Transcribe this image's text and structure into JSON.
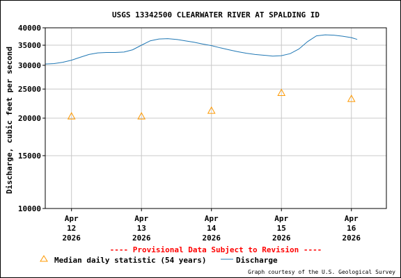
{
  "chart_data": {
    "type": "line",
    "title": "USGS 13342500 CLEARWATER RIVER AT SPALDING ID",
    "ylabel": "Discharge, cubic feet per second",
    "xlabel": "",
    "y_scale": "log",
    "ylim": [
      10000,
      40000
    ],
    "y_ticks": [
      10000,
      15000,
      20000,
      25000,
      30000,
      35000,
      40000
    ],
    "xlim": [
      "2026-04-11T15:00",
      "2026-04-16T12:00"
    ],
    "x_ticks": [
      {
        "date": "2026-04-12",
        "label": [
          "Apr",
          "12",
          "2026"
        ]
      },
      {
        "date": "2026-04-13",
        "label": [
          "Apr",
          "13",
          "2026"
        ]
      },
      {
        "date": "2026-04-14",
        "label": [
          "Apr",
          "14",
          "2026"
        ]
      },
      {
        "date": "2026-04-15",
        "label": [
          "Apr",
          "15",
          "2026"
        ]
      },
      {
        "date": "2026-04-16",
        "label": [
          "Apr",
          "16",
          "2026"
        ]
      }
    ],
    "grid": true,
    "series": [
      {
        "name": "Discharge",
        "kind": "line",
        "color": "#1f77b4",
        "points": [
          [
            "2026-04-11T15:00",
            30300
          ],
          [
            "2026-04-11T18:00",
            30400
          ],
          [
            "2026-04-11T21:00",
            30700
          ],
          [
            "2026-04-12T00:00",
            31200
          ],
          [
            "2026-04-12T03:00",
            31900
          ],
          [
            "2026-04-12T06:00",
            32600
          ],
          [
            "2026-04-12T09:00",
            33000
          ],
          [
            "2026-04-12T12:00",
            33100
          ],
          [
            "2026-04-12T15:00",
            33100
          ],
          [
            "2026-04-12T18:00",
            33200
          ],
          [
            "2026-04-12T21:00",
            33800
          ],
          [
            "2026-04-13T00:00",
            35000
          ],
          [
            "2026-04-13T03:00",
            36200
          ],
          [
            "2026-04-13T06:00",
            36700
          ],
          [
            "2026-04-13T09:00",
            36800
          ],
          [
            "2026-04-13T12:00",
            36600
          ],
          [
            "2026-04-13T15:00",
            36200
          ],
          [
            "2026-04-13T18:00",
            35800
          ],
          [
            "2026-04-13T21:00",
            35300
          ],
          [
            "2026-04-14T00:00",
            34900
          ],
          [
            "2026-04-14T03:00",
            34300
          ],
          [
            "2026-04-14T06:00",
            33800
          ],
          [
            "2026-04-14T09:00",
            33300
          ],
          [
            "2026-04-14T12:00",
            32900
          ],
          [
            "2026-04-14T15:00",
            32600
          ],
          [
            "2026-04-14T18:00",
            32400
          ],
          [
            "2026-04-14T21:00",
            32200
          ],
          [
            "2026-04-15T00:00",
            32300
          ],
          [
            "2026-04-15T03:00",
            32800
          ],
          [
            "2026-04-15T06:00",
            34000
          ],
          [
            "2026-04-15T09:00",
            36000
          ],
          [
            "2026-04-15T12:00",
            37600
          ],
          [
            "2026-04-15T15:00",
            37900
          ],
          [
            "2026-04-15T18:00",
            37800
          ],
          [
            "2026-04-15T21:00",
            37500
          ],
          [
            "2026-04-16T00:00",
            37100
          ],
          [
            "2026-04-16T02:00",
            36600
          ]
        ]
      },
      {
        "name": "Median daily statistic (54 years)",
        "kind": "marker",
        "marker": "triangle",
        "color": "#ff9900",
        "points": [
          [
            "2026-04-12T00:00",
            20300
          ],
          [
            "2026-04-13T00:00",
            20300
          ],
          [
            "2026-04-14T00:00",
            21200
          ],
          [
            "2026-04-15T00:00",
            24300
          ],
          [
            "2026-04-16T00:00",
            23200
          ]
        ]
      }
    ],
    "provisional_note": "---- Provisional Data Subject to Revision ----",
    "provisional_color": "#ff0000",
    "legend": {
      "placement": "bottom-left",
      "items": [
        {
          "label": "Median daily statistic (54 years)",
          "marker": "triangle",
          "color": "#ff9900"
        },
        {
          "label": "Discharge",
          "marker": "line",
          "color": "#1f77b4"
        }
      ]
    },
    "credit": "Graph courtesy of the U.S. Geological Survey"
  }
}
